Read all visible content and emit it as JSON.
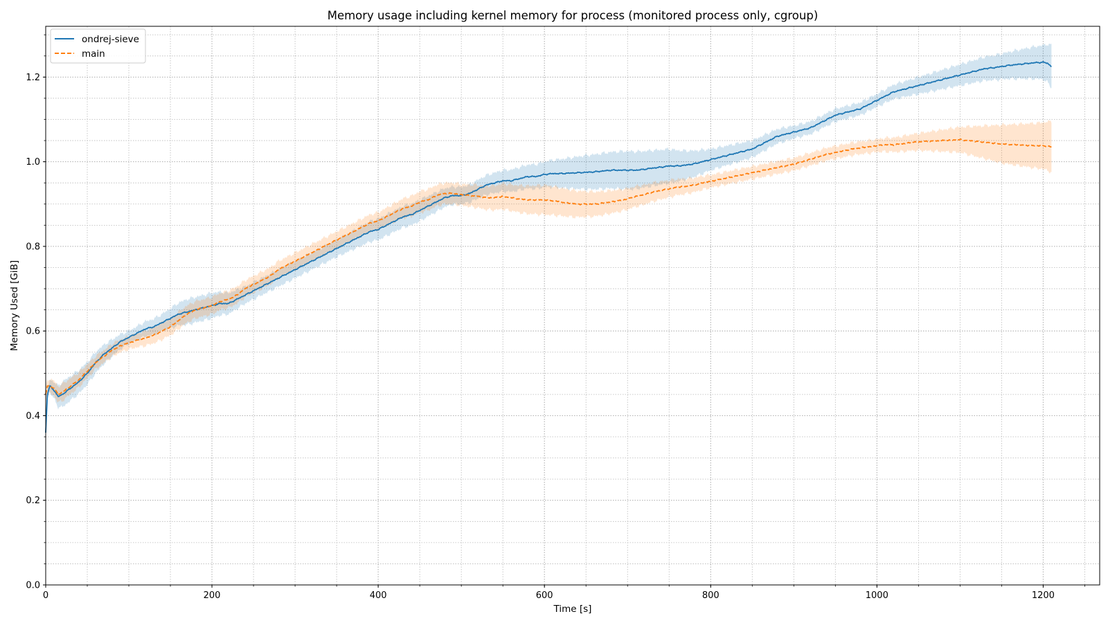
{
  "chart_data": {
    "type": "line",
    "title": "Memory usage including kernel memory for process (monitored process only, cgroup)",
    "xlabel": "Time [s]",
    "ylabel": "Memory Used [GiB]",
    "xlim": [
      0,
      1268
    ],
    "ylim": [
      0.0,
      1.32
    ],
    "x_ticks": [
      0,
      200,
      400,
      600,
      800,
      1000,
      1200
    ],
    "x_tick_labels": [
      "0",
      "200",
      "400",
      "600",
      "800",
      "1000",
      "1200"
    ],
    "y_ticks": [
      0.0,
      0.2,
      0.4,
      0.6,
      0.8,
      1.0,
      1.2
    ],
    "y_tick_labels": [
      "0.0",
      "0.2",
      "0.4",
      "0.6",
      "0.8",
      "1.0",
      "1.2"
    ],
    "x_minor_step": 50,
    "y_minor_step": 0.05,
    "grid": true,
    "legend_position": "top-left",
    "series": [
      {
        "name": "ondrej-sieve",
        "color": "#1f77b4",
        "style": "solid",
        "points": [
          [
            0,
            0.36
          ],
          [
            2,
            0.45
          ],
          [
            5,
            0.47
          ],
          [
            10,
            0.46
          ],
          [
            15,
            0.445
          ],
          [
            20,
            0.45
          ],
          [
            30,
            0.465
          ],
          [
            40,
            0.48
          ],
          [
            50,
            0.5
          ],
          [
            60,
            0.525
          ],
          [
            70,
            0.545
          ],
          [
            80,
            0.56
          ],
          [
            90,
            0.575
          ],
          [
            100,
            0.585
          ],
          [
            110,
            0.595
          ],
          [
            120,
            0.605
          ],
          [
            130,
            0.61
          ],
          [
            140,
            0.62
          ],
          [
            150,
            0.63
          ],
          [
            160,
            0.64
          ],
          [
            170,
            0.645
          ],
          [
            180,
            0.65
          ],
          [
            190,
            0.655
          ],
          [
            200,
            0.66
          ],
          [
            210,
            0.665
          ],
          [
            220,
            0.665
          ],
          [
            230,
            0.675
          ],
          [
            240,
            0.685
          ],
          [
            250,
            0.695
          ],
          [
            260,
            0.705
          ],
          [
            270,
            0.715
          ],
          [
            280,
            0.725
          ],
          [
            290,
            0.735
          ],
          [
            300,
            0.745
          ],
          [
            310,
            0.755
          ],
          [
            320,
            0.765
          ],
          [
            330,
            0.775
          ],
          [
            340,
            0.785
          ],
          [
            350,
            0.795
          ],
          [
            360,
            0.805
          ],
          [
            370,
            0.815
          ],
          [
            380,
            0.825
          ],
          [
            390,
            0.835
          ],
          [
            400,
            0.84
          ],
          [
            410,
            0.85
          ],
          [
            420,
            0.86
          ],
          [
            430,
            0.87
          ],
          [
            440,
            0.875
          ],
          [
            450,
            0.885
          ],
          [
            460,
            0.895
          ],
          [
            470,
            0.905
          ],
          [
            480,
            0.915
          ],
          [
            490,
            0.92
          ],
          [
            500,
            0.92
          ],
          [
            510,
            0.925
          ],
          [
            520,
            0.935
          ],
          [
            530,
            0.945
          ],
          [
            540,
            0.95
          ],
          [
            550,
            0.955
          ],
          [
            560,
            0.955
          ],
          [
            570,
            0.96
          ],
          [
            580,
            0.965
          ],
          [
            590,
            0.965
          ],
          [
            600,
            0.97
          ],
          [
            610,
            0.972
          ],
          [
            620,
            0.972
          ],
          [
            630,
            0.973
          ],
          [
            640,
            0.974
          ],
          [
            650,
            0.975
          ],
          [
            660,
            0.976
          ],
          [
            670,
            0.978
          ],
          [
            680,
            0.98
          ],
          [
            690,
            0.98
          ],
          [
            700,
            0.98
          ],
          [
            710,
            0.98
          ],
          [
            720,
            0.982
          ],
          [
            730,
            0.985
          ],
          [
            740,
            0.987
          ],
          [
            750,
            0.99
          ],
          [
            760,
            0.99
          ],
          [
            770,
            0.992
          ],
          [
            780,
            0.995
          ],
          [
            790,
            1.0
          ],
          [
            800,
            1.005
          ],
          [
            810,
            1.01
          ],
          [
            820,
            1.015
          ],
          [
            830,
            1.02
          ],
          [
            840,
            1.025
          ],
          [
            850,
            1.03
          ],
          [
            860,
            1.04
          ],
          [
            870,
            1.05
          ],
          [
            880,
            1.06
          ],
          [
            890,
            1.065
          ],
          [
            900,
            1.07
          ],
          [
            910,
            1.075
          ],
          [
            920,
            1.08
          ],
          [
            930,
            1.09
          ],
          [
            940,
            1.1
          ],
          [
            950,
            1.11
          ],
          [
            960,
            1.115
          ],
          [
            970,
            1.12
          ],
          [
            980,
            1.125
          ],
          [
            990,
            1.135
          ],
          [
            1000,
            1.145
          ],
          [
            1010,
            1.155
          ],
          [
            1020,
            1.165
          ],
          [
            1030,
            1.17
          ],
          [
            1040,
            1.175
          ],
          [
            1050,
            1.18
          ],
          [
            1060,
            1.185
          ],
          [
            1070,
            1.19
          ],
          [
            1080,
            1.195
          ],
          [
            1090,
            1.2
          ],
          [
            1100,
            1.205
          ],
          [
            1110,
            1.21
          ],
          [
            1120,
            1.215
          ],
          [
            1130,
            1.22
          ],
          [
            1140,
            1.222
          ],
          [
            1150,
            1.225
          ],
          [
            1160,
            1.228
          ],
          [
            1170,
            1.23
          ],
          [
            1180,
            1.232
          ],
          [
            1190,
            1.234
          ],
          [
            1200,
            1.235
          ],
          [
            1205,
            1.233
          ],
          [
            1210,
            1.225
          ]
        ],
        "band_halfwidth": [
          [
            0,
            0.01
          ],
          [
            10,
            0.02
          ],
          [
            20,
            0.03
          ],
          [
            60,
            0.025
          ],
          [
            100,
            0.015
          ],
          [
            140,
            0.02
          ],
          [
            170,
            0.03
          ],
          [
            200,
            0.03
          ],
          [
            240,
            0.02
          ],
          [
            300,
            0.02
          ],
          [
            350,
            0.02
          ],
          [
            400,
            0.025
          ],
          [
            450,
            0.025
          ],
          [
            500,
            0.02
          ],
          [
            550,
            0.025
          ],
          [
            600,
            0.03
          ],
          [
            650,
            0.04
          ],
          [
            700,
            0.045
          ],
          [
            750,
            0.04
          ],
          [
            800,
            0.025
          ],
          [
            850,
            0.02
          ],
          [
            900,
            0.015
          ],
          [
            950,
            0.015
          ],
          [
            1000,
            0.015
          ],
          [
            1050,
            0.02
          ],
          [
            1100,
            0.025
          ],
          [
            1150,
            0.03
          ],
          [
            1200,
            0.04
          ],
          [
            1210,
            0.05
          ]
        ]
      },
      {
        "name": "main",
        "color": "#ff7f0e",
        "style": "dashed",
        "points": [
          [
            0,
            0.45
          ],
          [
            2,
            0.47
          ],
          [
            5,
            0.47
          ],
          [
            10,
            0.465
          ],
          [
            15,
            0.45
          ],
          [
            20,
            0.455
          ],
          [
            30,
            0.47
          ],
          [
            40,
            0.485
          ],
          [
            50,
            0.505
          ],
          [
            60,
            0.525
          ],
          [
            70,
            0.54
          ],
          [
            80,
            0.555
          ],
          [
            90,
            0.565
          ],
          [
            100,
            0.572
          ],
          [
            110,
            0.578
          ],
          [
            120,
            0.583
          ],
          [
            130,
            0.59
          ],
          [
            140,
            0.6
          ],
          [
            150,
            0.61
          ],
          [
            160,
            0.625
          ],
          [
            170,
            0.64
          ],
          [
            180,
            0.65
          ],
          [
            190,
            0.655
          ],
          [
            200,
            0.66
          ],
          [
            210,
            0.67
          ],
          [
            220,
            0.675
          ],
          [
            230,
            0.685
          ],
          [
            240,
            0.7
          ],
          [
            250,
            0.71
          ],
          [
            260,
            0.72
          ],
          [
            270,
            0.73
          ],
          [
            280,
            0.745
          ],
          [
            290,
            0.755
          ],
          [
            300,
            0.765
          ],
          [
            310,
            0.775
          ],
          [
            320,
            0.785
          ],
          [
            330,
            0.795
          ],
          [
            340,
            0.805
          ],
          [
            350,
            0.815
          ],
          [
            360,
            0.825
          ],
          [
            370,
            0.835
          ],
          [
            380,
            0.845
          ],
          [
            390,
            0.855
          ],
          [
            400,
            0.86
          ],
          [
            410,
            0.87
          ],
          [
            420,
            0.88
          ],
          [
            430,
            0.89
          ],
          [
            440,
            0.895
          ],
          [
            450,
            0.905
          ],
          [
            460,
            0.91
          ],
          [
            470,
            0.92
          ],
          [
            480,
            0.925
          ],
          [
            490,
            0.925
          ],
          [
            500,
            0.922
          ],
          [
            510,
            0.92
          ],
          [
            520,
            0.918
          ],
          [
            530,
            0.915
          ],
          [
            540,
            0.915
          ],
          [
            550,
            0.918
          ],
          [
            560,
            0.915
          ],
          [
            570,
            0.912
          ],
          [
            580,
            0.91
          ],
          [
            590,
            0.91
          ],
          [
            600,
            0.91
          ],
          [
            610,
            0.908
          ],
          [
            620,
            0.905
          ],
          [
            630,
            0.902
          ],
          [
            640,
            0.9
          ],
          [
            650,
            0.9
          ],
          [
            660,
            0.9
          ],
          [
            670,
            0.902
          ],
          [
            680,
            0.905
          ],
          [
            690,
            0.908
          ],
          [
            700,
            0.912
          ],
          [
            710,
            0.918
          ],
          [
            720,
            0.922
          ],
          [
            730,
            0.928
          ],
          [
            740,
            0.932
          ],
          [
            750,
            0.936
          ],
          [
            760,
            0.94
          ],
          [
            770,
            0.942
          ],
          [
            780,
            0.945
          ],
          [
            790,
            0.95
          ],
          [
            800,
            0.954
          ],
          [
            810,
            0.958
          ],
          [
            820,
            0.962
          ],
          [
            830,
            0.966
          ],
          [
            840,
            0.97
          ],
          [
            850,
            0.974
          ],
          [
            860,
            0.978
          ],
          [
            870,
            0.982
          ],
          [
            880,
            0.986
          ],
          [
            890,
            0.99
          ],
          [
            900,
            0.994
          ],
          [
            910,
            1.0
          ],
          [
            920,
            1.006
          ],
          [
            930,
            1.012
          ],
          [
            940,
            1.018
          ],
          [
            950,
            1.022
          ],
          [
            960,
            1.026
          ],
          [
            970,
            1.03
          ],
          [
            980,
            1.033
          ],
          [
            990,
            1.035
          ],
          [
            1000,
            1.038
          ],
          [
            1010,
            1.04
          ],
          [
            1020,
            1.04
          ],
          [
            1030,
            1.042
          ],
          [
            1040,
            1.045
          ],
          [
            1050,
            1.047
          ],
          [
            1060,
            1.048
          ],
          [
            1070,
            1.049
          ],
          [
            1080,
            1.05
          ],
          [
            1090,
            1.051
          ],
          [
            1100,
            1.052
          ],
          [
            1110,
            1.05
          ],
          [
            1120,
            1.048
          ],
          [
            1130,
            1.046
          ],
          [
            1140,
            1.044
          ],
          [
            1150,
            1.042
          ],
          [
            1160,
            1.041
          ],
          [
            1170,
            1.04
          ],
          [
            1180,
            1.039
          ],
          [
            1190,
            1.038
          ],
          [
            1200,
            1.038
          ],
          [
            1205,
            1.037
          ],
          [
            1210,
            1.035
          ]
        ],
        "band_halfwidth": [
          [
            0,
            0.015
          ],
          [
            20,
            0.02
          ],
          [
            60,
            0.015
          ],
          [
            100,
            0.015
          ],
          [
            140,
            0.02
          ],
          [
            200,
            0.02
          ],
          [
            250,
            0.02
          ],
          [
            300,
            0.02
          ],
          [
            400,
            0.02
          ],
          [
            450,
            0.025
          ],
          [
            500,
            0.025
          ],
          [
            550,
            0.03
          ],
          [
            600,
            0.035
          ],
          [
            650,
            0.03
          ],
          [
            700,
            0.025
          ],
          [
            750,
            0.02
          ],
          [
            800,
            0.015
          ],
          [
            900,
            0.015
          ],
          [
            1000,
            0.015
          ],
          [
            1050,
            0.02
          ],
          [
            1100,
            0.03
          ],
          [
            1150,
            0.045
          ],
          [
            1200,
            0.055
          ],
          [
            1210,
            0.06
          ]
        ]
      }
    ]
  }
}
